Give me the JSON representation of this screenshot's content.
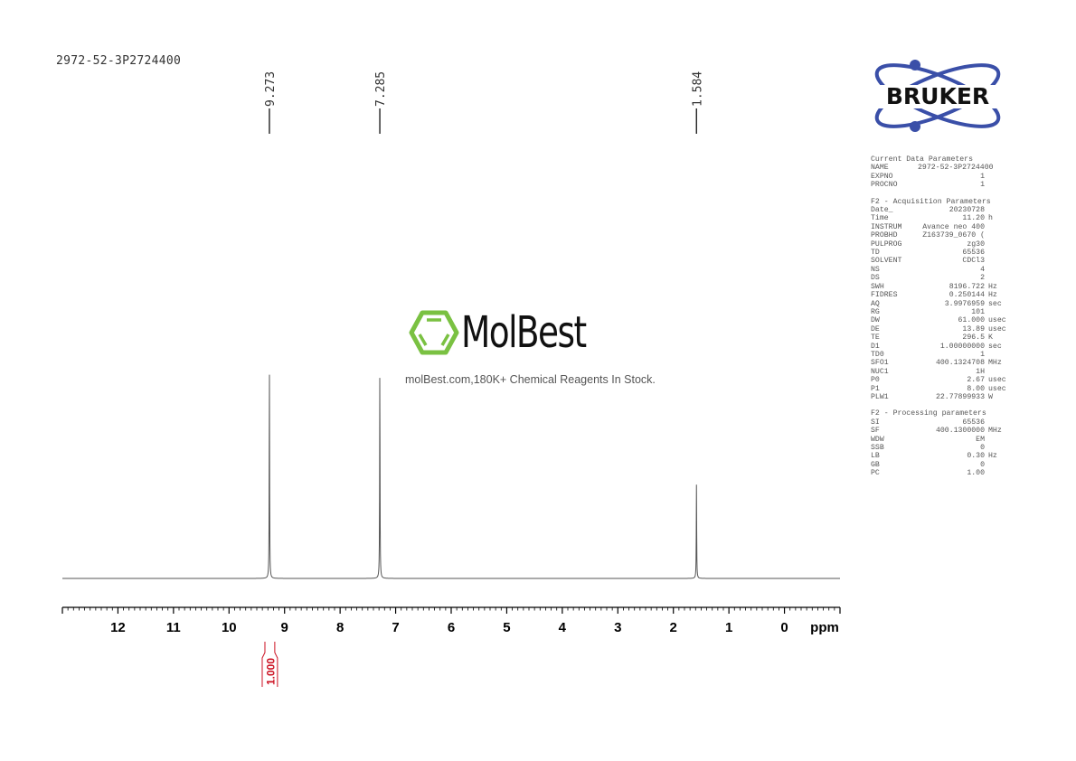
{
  "title": "2972-52-3P2724400",
  "logo": {
    "brand": "BRUKER",
    "color": "#3a4fa8"
  },
  "watermark": {
    "brand": "MolBest",
    "tagline": "molBest.com,180K+ Chemical Reagents In Stock.",
    "color": "#7ac142"
  },
  "parameters": [
    {
      "heading": "Current Data Parameters",
      "rows": [
        [
          "NAME",
          "2972-52-3P2724400",
          ""
        ],
        [
          "EXPNO",
          "1",
          ""
        ],
        [
          "PROCNO",
          "1",
          ""
        ]
      ]
    },
    {
      "heading": "F2 - Acquisition Parameters",
      "rows": [
        [
          "Date_",
          "20230728",
          ""
        ],
        [
          "Time",
          "11.20",
          "h"
        ],
        [
          "INSTRUM",
          "Avance neo 400",
          ""
        ],
        [
          "PROBHD",
          "Z163739_0670 (",
          ""
        ],
        [
          "PULPROG",
          "zg30",
          ""
        ],
        [
          "TD",
          "65536",
          ""
        ],
        [
          "SOLVENT",
          "CDCl3",
          ""
        ],
        [
          "NS",
          "4",
          ""
        ],
        [
          "DS",
          "2",
          ""
        ],
        [
          "SWH",
          "8196.722",
          "Hz"
        ],
        [
          "FIDRES",
          "0.250144",
          "Hz"
        ],
        [
          "AQ",
          "3.9976959",
          "sec"
        ],
        [
          "RG",
          "101",
          ""
        ],
        [
          "DW",
          "61.000",
          "usec"
        ],
        [
          "DE",
          "13.89",
          "usec"
        ],
        [
          "TE",
          "296.5",
          "K"
        ],
        [
          "D1",
          "1.00000000",
          "sec"
        ],
        [
          "TD0",
          "1",
          ""
        ],
        [
          "SFO1",
          "400.1324708",
          "MHz"
        ],
        [
          "NUC1",
          "1H",
          ""
        ],
        [
          "P0",
          "2.67",
          "usec"
        ],
        [
          "P1",
          "8.00",
          "usec"
        ],
        [
          "PLW1",
          "22.77899933",
          "W"
        ]
      ]
    },
    {
      "heading": "F2 - Processing parameters",
      "rows": [
        [
          "SI",
          "65536",
          ""
        ],
        [
          "SF",
          "400.1300000",
          "MHz"
        ],
        [
          "WDW",
          "EM",
          ""
        ],
        [
          "SSB",
          "0",
          ""
        ],
        [
          "LB",
          "0.30",
          "Hz"
        ],
        [
          "GB",
          "0",
          ""
        ],
        [
          "PC",
          "1.00",
          ""
        ]
      ]
    }
  ],
  "chart_data": {
    "type": "line",
    "xlabel": "ppm",
    "xlim": [
      13,
      -1
    ],
    "x_ticks": [
      "12",
      "11",
      "10",
      "9",
      "8",
      "7",
      "6",
      "5",
      "4",
      "3",
      "2",
      "1",
      "0"
    ],
    "peaks": [
      {
        "ppm": 9.273,
        "label": "9.273",
        "intensity": 1.0
      },
      {
        "ppm": 7.285,
        "label": "7.285",
        "intensity": 1.0
      },
      {
        "ppm": 1.584,
        "label": "1.584",
        "intensity": 0.44
      }
    ],
    "integrals": [
      {
        "from": 9.37,
        "to": 9.16,
        "value": "1.000"
      }
    ],
    "colors": {
      "spectrum": "#555555",
      "integral": "#cc1122",
      "axis": "#000000"
    }
  }
}
